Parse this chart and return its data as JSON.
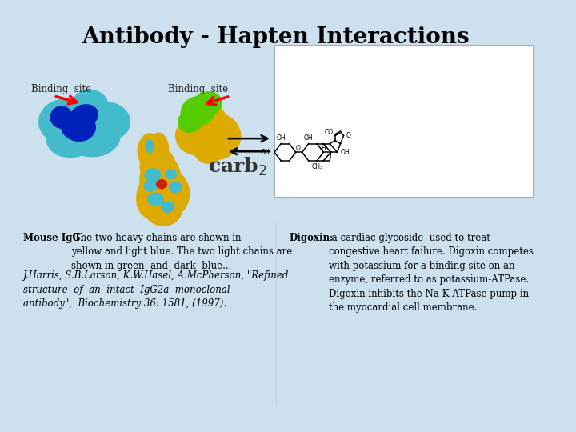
{
  "title": "Antibody - Hapten Interactions",
  "title_fontsize": 20,
  "bg_color": "#cce0ee",
  "text_color": "#000000",
  "binding_site_left_label": "Binding  site",
  "binding_site_right_label": "Binding  site",
  "carb2_label": "carb",
  "mouse_igg_bold": "Mouse IgG:",
  "mouse_igg_normal": " The two heavy chains are shown in\nyellow and light blue. The two light chains are\nshown in green  and  dark  blue...",
  "mouse_igg_italic": "J.Harris, S.B.Larson, K.W.Hasel, A.McPherson, \"Refined\nstructure  of  an  intact  IgG2a  monoclonal\nantibody\",  Biochemistry 36: 1581, (1997).",
  "digoxin_bold": "Digoxin:",
  "digoxin_normal": " a cardiac glycoside  used to treat\ncongestive heart failure. Digoxin competes\nwith potassium for a binding site on an\nenzyme, referred to as potassium-ATPase.\nDigoxin inhibits the Na-K ATPase pump in\nthe myocardial cell membrane."
}
